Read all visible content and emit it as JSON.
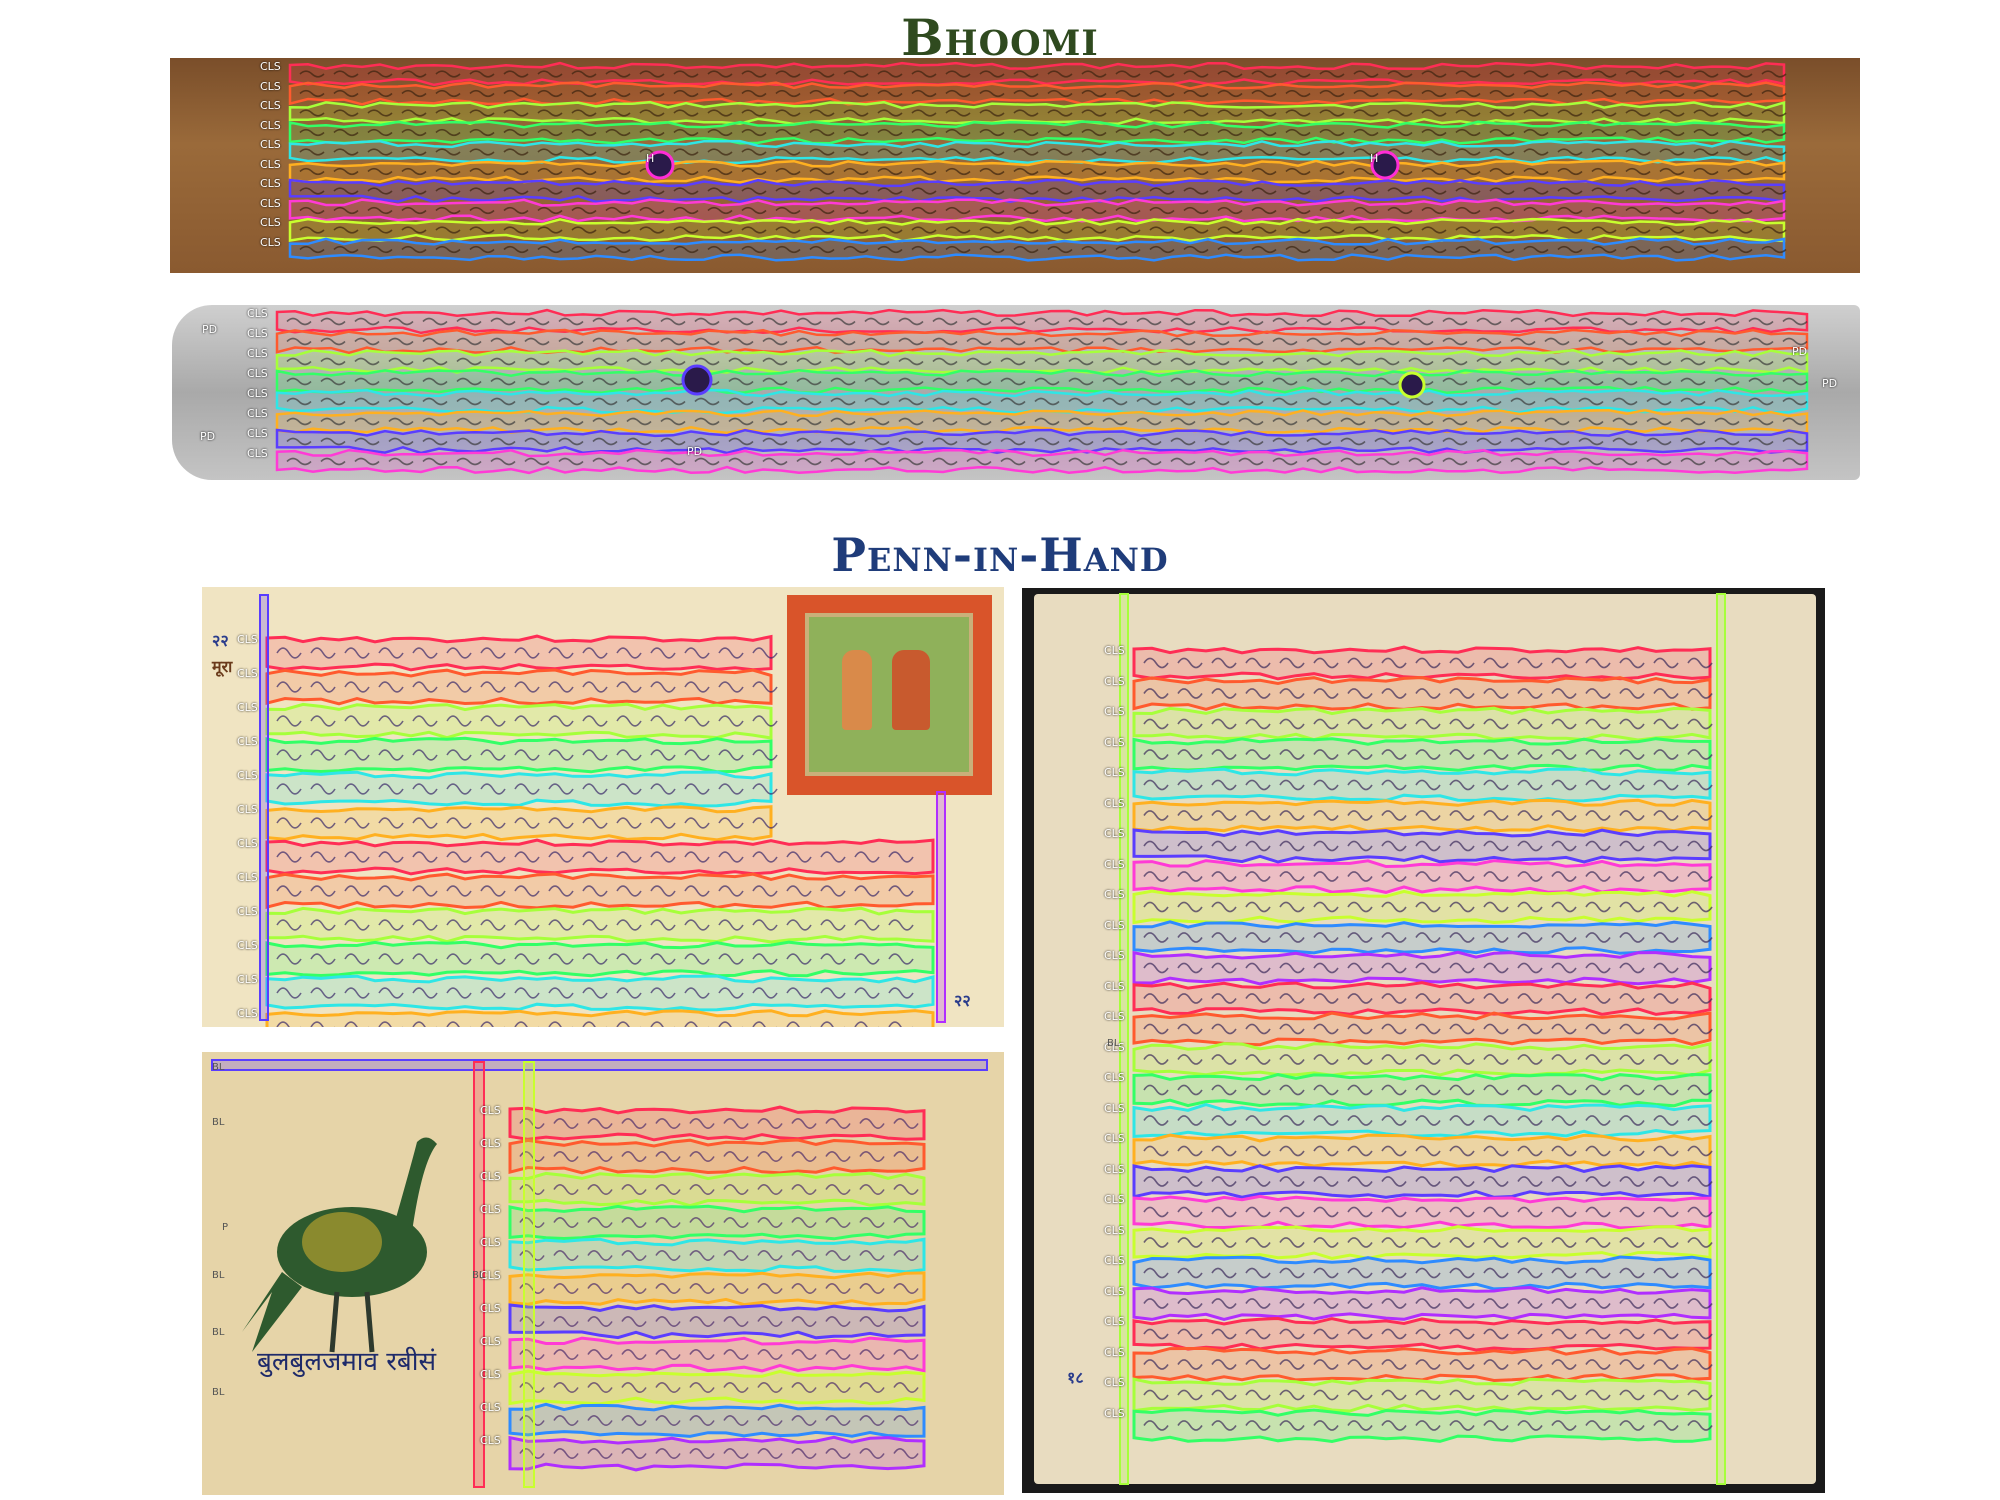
{
  "titles": {
    "bhoomi": "Bhoomi",
    "penn": "Penn-in-Hand"
  },
  "labels": {
    "cls": "CLS",
    "pd": "PD",
    "h": "H",
    "bl": "BL",
    "p": "P"
  },
  "page_numbers": {
    "p1_left": "२२",
    "p1_left2": "मूरा",
    "p1_right": "२२",
    "p3": "१८"
  },
  "caption_p2": "बुलबुलजमाव रबीसं",
  "colors": {
    "bhoomi_leaf1": "#8a5a2e",
    "bhoomi_leaf2": "#b9b9b9",
    "paper": "#efe3c0",
    "paper_dark": "#d8c59a",
    "title_green": "#2f4a1f",
    "title_blue": "#1f3c7a",
    "line_colors": [
      "#ff2d55",
      "#ff5a2e",
      "#a6ff3a",
      "#33ff66",
      "#2ee6e6",
      "#ffb020",
      "#5a3dff",
      "#ff3ad6",
      "#c8ff2e",
      "#2e8bff",
      "#b02eff"
    ]
  }
}
